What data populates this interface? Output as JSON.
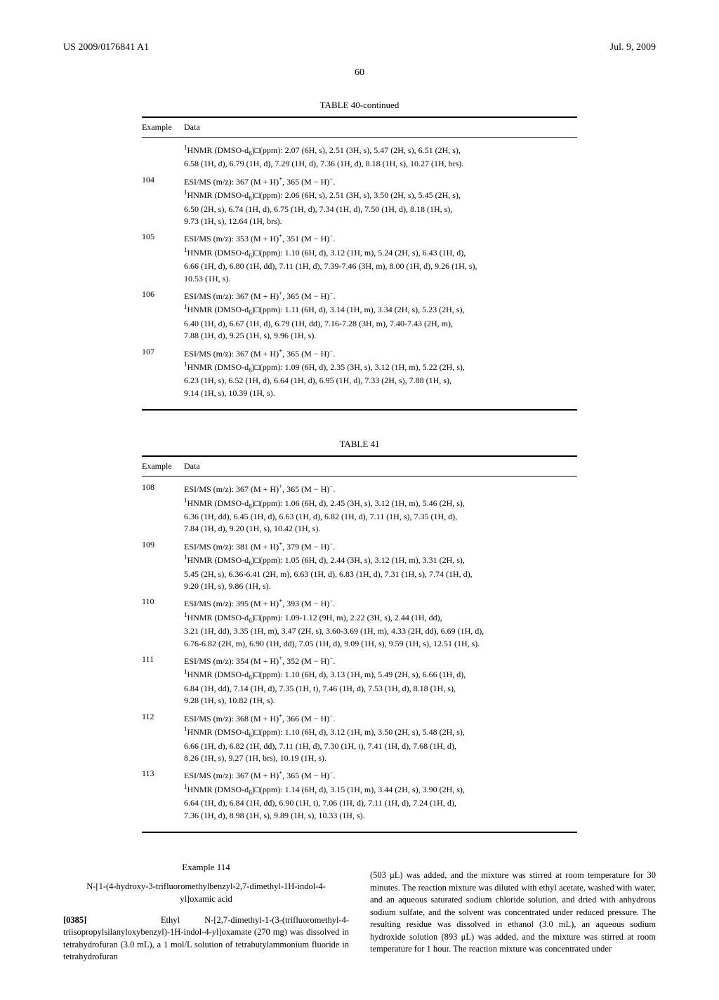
{
  "header": {
    "left": "US 2009/0176841 A1",
    "right": "Jul. 9, 2009"
  },
  "pageNumber": "60",
  "table40": {
    "title": "TABLE 40-continued",
    "headExample": "Example",
    "headData": "Data",
    "rows": [
      {
        "ex": "",
        "lines": [
          "<span class='sup'>1</span>HNMR (DMSO-d<span class='sub'>6</span>)□(ppm): 2.07 (6H, s), 2.51 (3H, s), 5.47 (2H, s), 6.51 (2H, s),",
          "6.58 (1H, d), 6.79 (1H, d), 7.29 (1H, d), 7.36 (1H, d), 8.18 (1H, s), 10.27 (1H, brs)."
        ]
      },
      {
        "ex": "104",
        "lines": [
          "ESI/MS (m/z): 367 (M + H)<span class='sup'>+</span>, 365 (M − H)<span class='sup'>−</span>.",
          "<span class='sup'>1</span>HNMR (DMSO-d<span class='sub'>6</span>)□(ppm): 2.06 (6H, s), 2.51 (3H, s), 3.50 (2H, s), 5.45 (2H, s),",
          "6.50 (2H, s), 6.74 (1H, d), 6.75 (1H, d), 7.34 (1H, d), 7.50 (1H, d), 8.18 (1H, s),",
          "9.73 (1H, s), 12.64 (1H, brs)."
        ]
      },
      {
        "ex": "105",
        "lines": [
          "ESI/MS (m/z): 353 (M + H)<span class='sup'>+</span>, 351 (M − H)<span class='sup'>−</span>.",
          "<span class='sup'>1</span>HNMR (DMSO-d<span class='sub'>6</span>)□(ppm): 1.10 (6H, d), 3.12 (1H, m), 5.24 (2H, s), 6.43 (1H, d),",
          "6.66 (1H, d), 6.80 (1H, dd), 7.11 (1H, d), 7.39-7.46 (3H, m), 8.00 (1H, d), 9.26 (1H, s),",
          "10.53 (1H, s)."
        ]
      },
      {
        "ex": "106",
        "lines": [
          "ESI/MS (m/z): 367 (M + H)<span class='sup'>+</span>, 365 (M − H)<span class='sup'>−</span>.",
          "<span class='sup'>1</span>HNMR (DMSO-d<span class='sub'>6</span>)□(ppm): 1.11 (6H, d), 3.14 (1H, m), 3.34 (2H, s), 5.23 (2H, s),",
          "6.40 (1H, d), 6.67 (1H, d), 6.79 (1H, dd), 7.16-7.28 (3H, m), 7.40-7.43 (2H, m),",
          "7.88 (1H, d), 9.25 (1H, s), 9.96 (1H, s)."
        ]
      },
      {
        "ex": "107",
        "lines": [
          "ESI/MS (m/z): 367 (M + H)<span class='sup'>+</span>, 365 (M − H)<span class='sup'>−</span>.",
          "<span class='sup'>1</span>HNMR (DMSO-d<span class='sub'>6</span>)□(ppm): 1.09 (6H, d), 2.35 (3H, s), 3.12 (1H, m), 5.22 (2H, s),",
          "6.23 (1H, s), 6.52 (1H, d), 6.64 (1H, d), 6.95 (1H, d), 7.33 (2H, s), 7.88 (1H, s),",
          "9.14 (1H, s), 10.39 (1H, s)."
        ]
      }
    ]
  },
  "table41": {
    "title": "TABLE 41",
    "headExample": "Example",
    "headData": "Data",
    "rows": [
      {
        "ex": "108",
        "lines": [
          "ESI/MS (m/z): 367 (M + H)<span class='sup'>+</span>, 365 (M − H)<span class='sup'>−</span>.",
          "<span class='sup'>1</span>HNMR (DMSO-d<span class='sub'>6</span>)□(ppm): 1.06 (6H, d), 2.45 (3H, s), 3.12 (1H, m), 5.46 (2H, s),",
          "6.36 (1H, dd), 6.45 (1H, d), 6.63 (1H, d), 6.82 (1H, d), 7.11 (1H, s), 7.35 (1H, d),",
          "7.84 (1H, d), 9.20 (1H, s), 10.42 (1H, s)."
        ]
      },
      {
        "ex": "109",
        "lines": [
          "ESI/MS (m/z): 381 (M + H)<span class='sup'>+</span>, 379 (M − H)<span class='sup'>−</span>.",
          "<span class='sup'>1</span>HNMR (DMSO-d<span class='sub'>6</span>)□(ppm): 1.05 (6H, d), 2.44 (3H, s), 3.12 (1H, m), 3.31 (2H, s),",
          "5.45 (2H, s), 6.36-6.41 (2H, m), 6.63 (1H, d), 6.83 (1H, d), 7.31 (1H, s), 7.74 (1H, d),",
          "9.20 (1H, s), 9.86 (1H, s)."
        ]
      },
      {
        "ex": "110",
        "lines": [
          "ESI/MS (m/z): 395 (M + H)<span class='sup'>+</span>, 393 (M − H)<span class='sup'>−</span>.",
          "<span class='sup'>1</span>HNMR (DMSO-d<span class='sub'>6</span>)□(ppm): 1.09-1.12 (9H, m), 2.22 (3H, s), 2.44 (1H, dd),",
          "3.21 (1H, dd), 3.35 (1H, m), 3.47 (2H, s), 3.60-3.69 (1H, m), 4.33 (2H, dd), 6.69 (1H, d),",
          "6.76-6.82 (2H, m), 6.90 (1H, dd), 7.05 (1H, d), 9.09 (1H, s), 9.59 (1H, s), 12.51 (1H, s)."
        ]
      },
      {
        "ex": "111",
        "lines": [
          "ESI/MS (m/z): 354 (M + H)<span class='sup'>+</span>, 352 (M − H)<span class='sup'>−</span>.",
          "<span class='sup'>1</span>HNMR (DMSO-d<span class='sub'>6</span>)□(ppm): 1.10 (6H, d), 3.13 (1H, m), 5.49 (2H, s), 6.66 (1H, d),",
          "6.84 (1H, dd), 7.14 (1H, d), 7.35 (1H, t), 7.46 (1H, d), 7.53 (1H, d), 8.18 (1H, s),",
          "9.28 (1H, s), 10.82 (1H, s)."
        ]
      },
      {
        "ex": "112",
        "lines": [
          "ESI/MS (m/z): 368 (M + H)<span class='sup'>+</span>, 366 (M − H)<span class='sup'>−</span>.",
          "<span class='sup'>1</span>HNMR (DMSO-d<span class='sub'>6</span>)□(ppm): 1.10 (6H, d), 3.12 (1H, m), 3.50 (2H, s), 5.48 (2H, s),",
          "6.66 (1H, d), 6.82 (1H, dd), 7.11 (1H, d), 7.30 (1H, t), 7.41 (1H, d), 7.68 (1H, d),",
          "8.26 (1H, s), 9.27 (1H, brs), 10.19 (1H, s)."
        ]
      },
      {
        "ex": "113",
        "lines": [
          "ESI/MS (m/z): 367 (M + H)<span class='sup'>+</span>, 365 (M − H)<span class='sup'>−</span>.",
          "<span class='sup'>1</span>HNMR (DMSO-d<span class='sub'>6</span>)□(ppm): 1.14 (6H, d), 3.15 (1H, m), 3.44 (2H, s), 3.90 (2H, s),",
          "6.64 (1H, d), 6.84 (1H, dd), 6.90 (1H, t), 7.06 (1H, d), 7.11 (1H, d), 7.24 (1H, d),",
          "7.36 (1H, d), 8.98 (1H, s), 9.89 (1H, s), 10.33 (1H, s)."
        ]
      }
    ]
  },
  "example114": {
    "heading": "Example 114",
    "compound": "N-[1-(4-hydroxy-3-trifluoromethylbenzyl-2,7-dimethyl-1H-indol-4-yl]oxamic acid",
    "paraNum": "[0385]",
    "leftText": "Ethyl N-[2,7-dimethyl-1-(3-(trifluoromethyl-4-triisopropylsilanyloxybenzyl)-1H-indol-4-yl]oxamate (270 mg) was dissolved in tetrahydrofuran (3.0 mL), a 1 mol/L solution of tetrabutylammonium fluoride in tetrahydrofuran",
    "rightText": "(503 μL) was added, and the mixture was stirred at room temperature for 30 minutes. The reaction mixture was diluted with ethyl acetate, washed with water, and an aqueous saturated sodium chloride solution, and dried with anhydrous sodium sulfate, and the solvent was concentrated under reduced pressure. The resulting residue was dissolved in ethanol (3.0 mL), an aqueous sodium hydroxide solution (893 μL) was added, and the mixture was stirred at room temperature for 1 hour. The reaction mixture was concentrated under"
  }
}
